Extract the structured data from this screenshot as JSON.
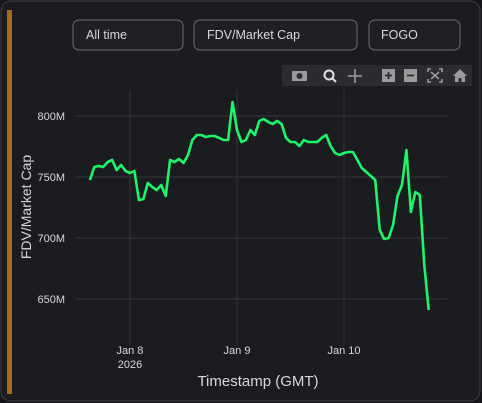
{
  "controls": {
    "period": "All time",
    "metric": "FDV/Market Cap",
    "token": "FOGO"
  },
  "chart_data": {
    "type": "line",
    "x_label": "Timestamp (GMT)",
    "y_label": "FDV/Market Cap",
    "grid": true,
    "xlim": [
      "2026-01-07 11:40",
      "2026-01-10 23:06"
    ],
    "xticks": [
      {
        "value": "2026-01-08 00:00",
        "label": "Jan 8",
        "sublabel": "2026"
      },
      {
        "value": "2026-01-09 00:00",
        "label": "Jan 9"
      },
      {
        "value": "2026-01-10 00:00",
        "label": "Jan 10"
      }
    ],
    "ylim": [
      612300000,
      821300000
    ],
    "yticks": [
      {
        "value": 650000000,
        "label": "650M"
      },
      {
        "value": 700000000,
        "label": "700M"
      },
      {
        "value": 750000000,
        "label": "750M"
      },
      {
        "value": 800000000,
        "label": "800M"
      }
    ],
    "x": [
      "2026-01-07 15:00",
      "2026-01-07 16:00",
      "2026-01-07 17:00",
      "2026-01-07 18:00",
      "2026-01-07 19:00",
      "2026-01-07 20:00",
      "2026-01-07 21:00",
      "2026-01-07 22:00",
      "2026-01-07 23:00",
      "2026-01-08 00:00",
      "2026-01-08 01:00",
      "2026-01-08 02:00",
      "2026-01-08 03:00",
      "2026-01-08 04:00",
      "2026-01-08 05:00",
      "2026-01-08 06:00",
      "2026-01-08 07:00",
      "2026-01-08 08:00",
      "2026-01-08 09:00",
      "2026-01-08 10:00",
      "2026-01-08 11:00",
      "2026-01-08 12:00",
      "2026-01-08 13:00",
      "2026-01-08 14:00",
      "2026-01-08 15:00",
      "2026-01-08 16:00",
      "2026-01-08 17:00",
      "2026-01-08 18:00",
      "2026-01-08 19:00",
      "2026-01-08 20:00",
      "2026-01-08 21:00",
      "2026-01-08 22:00",
      "2026-01-08 23:00",
      "2026-01-09 00:00",
      "2026-01-09 01:00",
      "2026-01-09 02:00",
      "2026-01-09 03:00",
      "2026-01-09 04:00",
      "2026-01-09 05:00",
      "2026-01-09 06:00",
      "2026-01-09 07:00",
      "2026-01-09 08:00",
      "2026-01-09 09:00",
      "2026-01-09 10:00",
      "2026-01-09 11:00",
      "2026-01-09 12:00",
      "2026-01-09 13:00",
      "2026-01-09 14:00",
      "2026-01-09 15:00",
      "2026-01-09 16:00",
      "2026-01-09 17:00",
      "2026-01-09 18:00",
      "2026-01-09 19:00",
      "2026-01-09 20:00",
      "2026-01-09 21:00",
      "2026-01-09 22:00",
      "2026-01-09 23:00",
      "2026-01-10 00:00",
      "2026-01-10 01:00",
      "2026-01-10 02:00",
      "2026-01-10 03:00",
      "2026-01-10 04:00",
      "2026-01-10 05:00",
      "2026-01-10 06:00",
      "2026-01-10 07:00",
      "2026-01-10 08:00",
      "2026-01-10 09:00",
      "2026-01-10 10:00",
      "2026-01-10 11:00",
      "2026-01-10 12:00",
      "2026-01-10 13:00",
      "2026-01-10 14:00",
      "2026-01-10 15:00",
      "2026-01-10 16:00",
      "2026-01-10 17:00",
      "2026-01-10 18:00",
      "2026-01-10 19:00"
    ],
    "series": [
      {
        "name": "FDV/Market Cap",
        "color": "#1ef46a",
        "values": [
          747500000,
          758200000,
          759000000,
          758200000,
          762300000,
          763900000,
          755700000,
          759800000,
          754900000,
          753300000,
          754900000,
          731100000,
          732000000,
          745100000,
          741800000,
          739300000,
          743400000,
          734400000,
          763900000,
          762300000,
          764800000,
          761500000,
          768000000,
          780300000,
          784400000,
          784400000,
          782800000,
          783600000,
          783600000,
          782000000,
          780300000,
          780300000,
          811500000,
          788500000,
          778700000,
          780300000,
          788500000,
          784400000,
          795900000,
          797500000,
          795100000,
          793400000,
          795900000,
          793400000,
          782000000,
          778700000,
          778700000,
          775400000,
          780300000,
          778700000,
          778700000,
          778700000,
          782000000,
          784400000,
          775400000,
          769700000,
          768000000,
          769700000,
          770500000,
          770500000,
          763900000,
          757400000,
          754100000,
          750800000,
          747500000,
          706600000,
          699200000,
          700000000,
          710700000,
          734400000,
          743400000,
          772100000,
          721300000,
          737700000,
          735200000,
          677900000,
          641000000
        ]
      }
    ]
  }
}
